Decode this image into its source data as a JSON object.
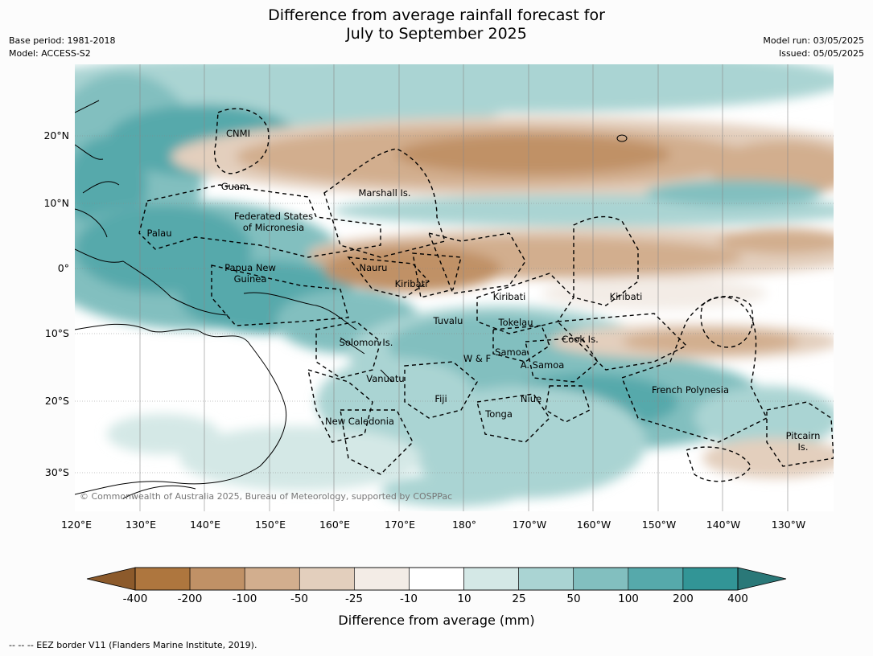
{
  "title": {
    "line1": "Difference from average rainfall forecast for",
    "line2": "July to September 2025"
  },
  "meta": {
    "base_period": "Base period: 1981-2018",
    "model": "Model: ACCESS-S2",
    "model_run": "Model run: 03/05/2025",
    "issued": "Issued: 05/05/2025"
  },
  "map": {
    "x_labels": [
      "120°E",
      "130°E",
      "140°E",
      "150°E",
      "160°E",
      "170°E",
      "180°",
      "170°W",
      "160°W",
      "150°W",
      "140°W",
      "130°W"
    ],
    "y_labels": [
      "20°N",
      "10°N",
      "0°",
      "10°S",
      "20°S",
      "30°S"
    ],
    "copyright": "© Commonwealth of Australia 2025, Bureau of Meteorology, supported by COSPPac",
    "places": {
      "cnmi": "CNMI",
      "guam": "Guam",
      "marshall": "Marshall Is.",
      "fsm1": "Federated States",
      "fsm2": "of Micronesia",
      "palau": "Palau",
      "png1": "Papua New",
      "png2": "Guinea",
      "nauru": "Nauru",
      "kiribati_w": "Kiribati",
      "kiribati_c": "Kiribati",
      "kiribati_e": "Kiribati",
      "tuvalu": "Tuvalu",
      "tokelau": "Tokelau",
      "solomon": "Solomon Is.",
      "samoa": "Samoa",
      "wf": "W & F",
      "asamoa": "A. Samoa",
      "cook": "Cook Is.",
      "vanuatu": "Vanuatu",
      "fiji": "Fiji",
      "niue": "Niue",
      "tonga": "Tonga",
      "frpoly": "French Polynesia",
      "newcal": "New Caledonia",
      "pitcairn1": "Pitcairn",
      "pitcairn2": "Is."
    }
  },
  "legend": {
    "title": "Difference from average (mm)",
    "boundaries": [
      "-400",
      "-200",
      "-100",
      "-50",
      "-25",
      "-10",
      "10",
      "25",
      "50",
      "100",
      "200",
      "400"
    ],
    "colors": {
      "extend_low": "#8c5a2b",
      "bins": [
        "#ae763e",
        "#c09166",
        "#d2ae8e",
        "#e3cfbd",
        "#f3ece6",
        "#ffffff",
        "#d4e8e6",
        "#aad4d3",
        "#82bfbf",
        "#56a9ab",
        "#329596"
      ],
      "extend_high": "#2a7878"
    }
  },
  "footnote": "--  --  -- EEZ border V11 (Flanders Marine Institute, 2019)."
}
